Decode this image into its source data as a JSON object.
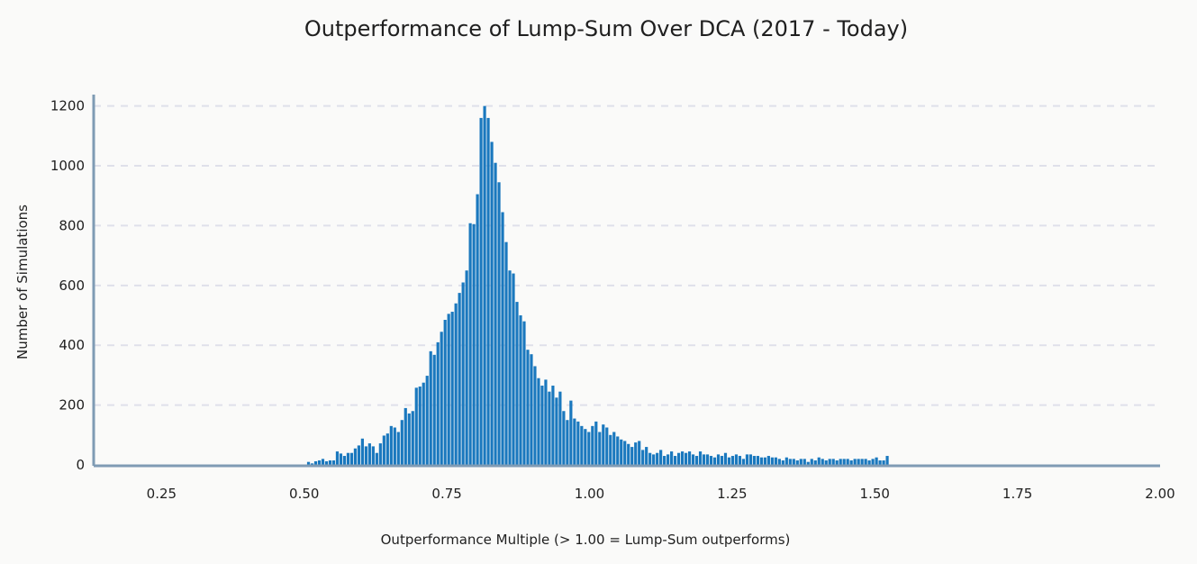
{
  "colors": {
    "background": "#fafaf9",
    "bar": "#1a78be",
    "grid": "#dfe0ea",
    "axis": "#7f9bb4",
    "text": "#1f1f1f"
  },
  "chart_data": {
    "type": "bar",
    "title": "Outperformance of Lump-Sum Over DCA (2017 - Today)",
    "xlabel": "Outperformance Multiple (> 1.00 = Lump-Sum outperforms)",
    "ylabel": "Number of Simulations",
    "xlim": [
      0.131,
      2.0
    ],
    "ylim": [
      0,
      1220
    ],
    "xticks": [
      0.25,
      0.5,
      0.75,
      1.0,
      1.25,
      1.5,
      1.75,
      2.0
    ],
    "xtick_labels": [
      "0.25",
      "0.50",
      "0.75",
      "1.00",
      "1.25",
      "1.50",
      "1.75",
      "2.00"
    ],
    "yticks": [
      0,
      200,
      400,
      600,
      800,
      1000,
      1200
    ],
    "ytick_labels": [
      "0",
      "200",
      "400",
      "600",
      "800",
      "1000",
      "1200"
    ],
    "grid": "horizontal dashed",
    "legend": "none",
    "bin_width": 0.0063,
    "bin_start": 0.505,
    "bin_values": [
      10,
      5,
      12,
      15,
      20,
      12,
      15,
      15,
      45,
      38,
      30,
      40,
      40,
      55,
      65,
      88,
      62,
      72,
      62,
      40,
      72,
      98,
      105,
      130,
      125,
      110,
      150,
      190,
      172,
      180,
      258,
      262,
      275,
      298,
      380,
      368,
      410,
      445,
      485,
      505,
      512,
      540,
      575,
      610,
      650,
      808,
      805,
      905,
      1160,
      1200,
      1160,
      1080,
      1010,
      945,
      845,
      745,
      650,
      640,
      545,
      500,
      480,
      385,
      370,
      330,
      290,
      265,
      285,
      245,
      265,
      225,
      245,
      180,
      150,
      215,
      155,
      145,
      130,
      120,
      110,
      130,
      145,
      110,
      135,
      125,
      100,
      110,
      95,
      85,
      80,
      70,
      60,
      75,
      80,
      50,
      60,
      40,
      35,
      40,
      50,
      30,
      35,
      45,
      30,
      40,
      45,
      40,
      45,
      35,
      30,
      45,
      35,
      35,
      30,
      25,
      35,
      30,
      40,
      25,
      30,
      35,
      30,
      20,
      35,
      35,
      30,
      30,
      25,
      25,
      30,
      25,
      25,
      20,
      15,
      25,
      20,
      20,
      15,
      20,
      20,
      10,
      20,
      15,
      25,
      20,
      15,
      20,
      20,
      15,
      20,
      20,
      20,
      15,
      20,
      20,
      20,
      20,
      15,
      20,
      25,
      15,
      15,
      30
    ]
  }
}
